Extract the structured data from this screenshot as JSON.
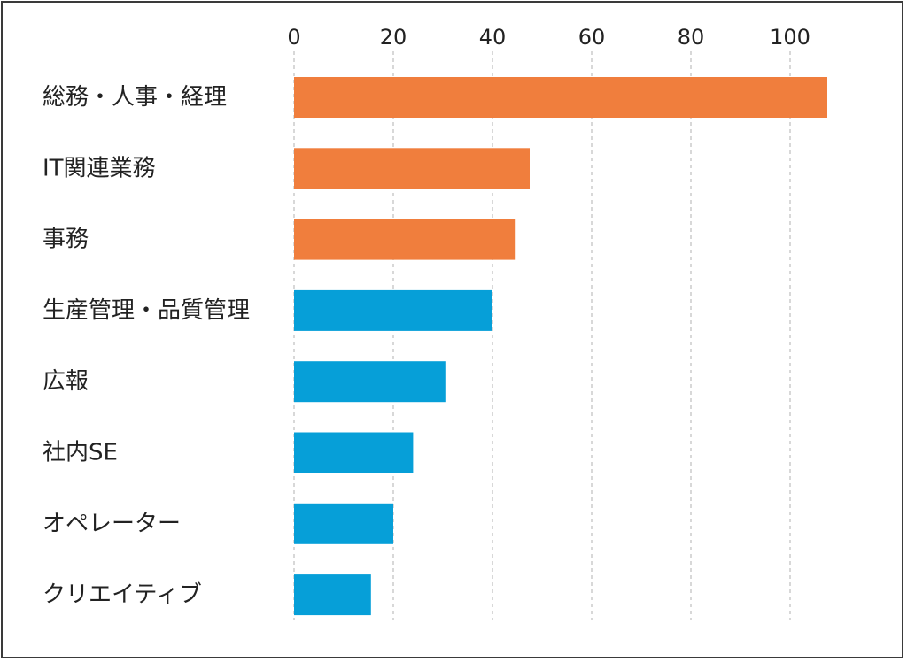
{
  "colors": {
    "highlight": "#F07E3D",
    "base": "#069FD8",
    "grid": "#bdbdbd",
    "frame": "#3a3a3a"
  },
  "chart_data": {
    "type": "bar",
    "orientation": "horizontal",
    "title": "",
    "xlabel": "",
    "ylabel": "",
    "xlim": [
      0,
      108
    ],
    "x_ticks": [
      0,
      20,
      40,
      60,
      80,
      100
    ],
    "x_tick_labels": [
      "0",
      "20",
      "40",
      "60",
      "80",
      "100"
    ],
    "x_axis_position": "top",
    "grid": "vertical dashed",
    "legend": "none",
    "categories": [
      "総務・人事・経理",
      "IT関連業務",
      "事務",
      "生産管理・品質管理",
      "広報",
      "社内SE",
      "オペレーター",
      "クリエイティブ"
    ],
    "values": [
      107.5,
      47.5,
      44.5,
      40,
      30.5,
      24,
      20,
      15.5
    ],
    "bar_colors": [
      "#F07E3D",
      "#F07E3D",
      "#F07E3D",
      "#069FD8",
      "#069FD8",
      "#069FD8",
      "#069FD8",
      "#069FD8"
    ]
  }
}
